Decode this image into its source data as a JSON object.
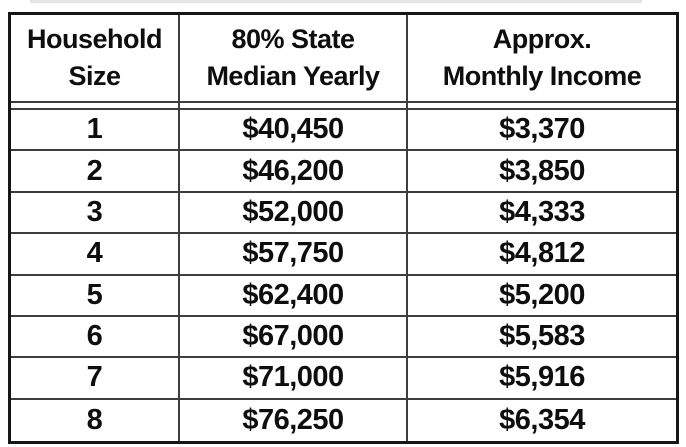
{
  "page": {
    "background": "#ffffff",
    "description": "Income eligibility table"
  },
  "table": {
    "colors": {
      "outer_border": "#161616",
      "inner_lines": "#3d3d3d",
      "text": "#0e0e0e",
      "background": "#ffffff"
    },
    "columns": [
      {
        "id": "household_size",
        "label": "Household\nSize"
      },
      {
        "id": "yearly",
        "label": "80% State\nMedian Yearly"
      },
      {
        "id": "monthly",
        "label": "Approx.\nMonthly Income"
      }
    ],
    "rows": [
      {
        "household_size": "1",
        "yearly": "$40,450",
        "monthly": "$3,370"
      },
      {
        "household_size": "2",
        "yearly": "$46,200",
        "monthly": "$3,850"
      },
      {
        "household_size": "3",
        "yearly": "$52,000",
        "monthly": "$4,333"
      },
      {
        "household_size": "4",
        "yearly": "$57,750",
        "monthly": "$4,812"
      },
      {
        "household_size": "5",
        "yearly": "$62,400",
        "monthly": "$5,200"
      },
      {
        "household_size": "6",
        "yearly": "$67,000",
        "monthly": "$5,583"
      },
      {
        "household_size": "7",
        "yearly": "$71,000",
        "monthly": "$5,916"
      },
      {
        "household_size": "8",
        "yearly": "$76,250",
        "monthly": "$6,354"
      }
    ]
  }
}
